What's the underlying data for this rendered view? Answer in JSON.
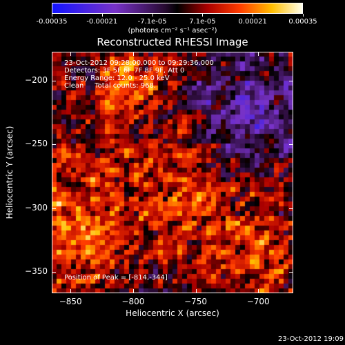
{
  "colorbar": {
    "ticks": [
      "-0.00035",
      "-0.00021",
      "-7.1e-05",
      "7.1e-05",
      "0.00021",
      "0.00035"
    ],
    "unit_label": "(photons cm⁻² s⁻¹ asec⁻²)",
    "range": [
      -0.00035,
      0.00035
    ]
  },
  "chart_data": {
    "type": "heatmap",
    "title": "Reconstructed RHESSI Image",
    "xlabel": "Heliocentric X (arcsec)",
    "ylabel": "Heliocentric Y (arcsec)",
    "xlim": [
      -865,
      -672
    ],
    "ylim": [
      -367,
      -177
    ],
    "x_ticks": [
      -850,
      -800,
      -750,
      -700
    ],
    "y_ticks": [
      -200,
      -250,
      -300,
      -350
    ],
    "value_range": [
      -0.00035,
      0.00035
    ],
    "peak_position": [
      -814,
      -344
    ],
    "info_lines": [
      "23-Oct-2012 09:28:00.000 to 09:29:36.000",
      "Detectors: 3F 5F 6F 7F 8F 9F, Att 0",
      "Energy Range: 12.0 - 25.0 keV",
      "Clean     Total counts: 968."
    ],
    "peak_label": "Position of Peak = [-814,-344]"
  },
  "footer": {
    "timestamp": "23-Oct-2012 19:09"
  }
}
